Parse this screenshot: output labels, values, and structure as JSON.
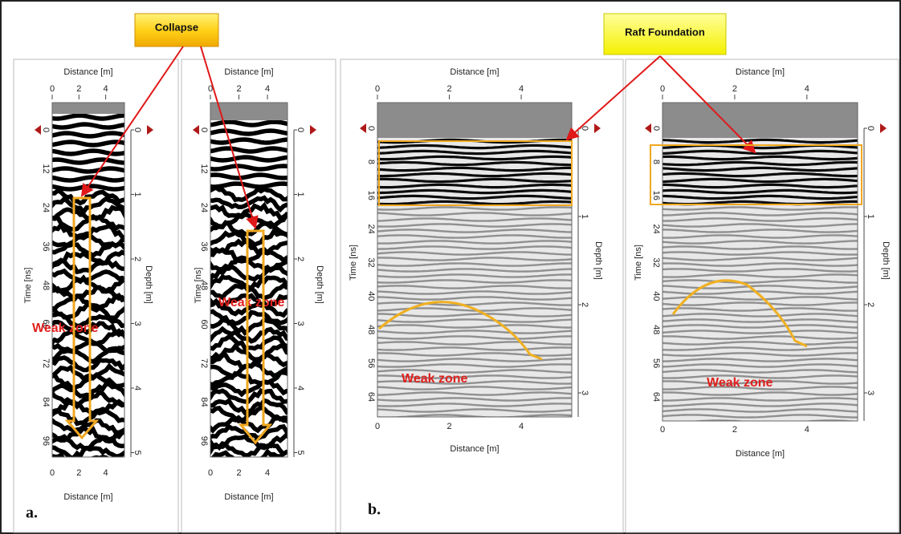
{
  "callouts": [
    {
      "label": "Collapse"
    },
    {
      "label": "Raft Foundation"
    }
  ],
  "panel_labels": [
    "a.",
    "b."
  ],
  "panels": [
    {
      "top_axis_label": "Distance [m]",
      "top_ticks": [
        "0",
        "2",
        "4"
      ],
      "bottom_axis_label": "Distance [m]",
      "bottom_ticks": [
        "0",
        "2",
        "4"
      ],
      "time_label": "Time [ns]",
      "time_ticks": [
        "0",
        "12",
        "24",
        "36",
        "48",
        "60",
        "72",
        "84",
        "96"
      ],
      "depth_label": "Depth [m]",
      "depth_ticks": [
        "0",
        "1",
        "2",
        "3",
        "4",
        "5"
      ],
      "weak_zone": "Weak zone"
    },
    {
      "top_axis_label": "Distance [m]",
      "top_ticks": [
        "0",
        "2",
        "4"
      ],
      "bottom_axis_label": "Distance [m]",
      "bottom_ticks": [
        "0",
        "2",
        "4"
      ],
      "time_label": "Time [ns]",
      "time_ticks": [
        "0",
        "12",
        "24",
        "36",
        "48",
        "60",
        "72",
        "84",
        "96"
      ],
      "depth_label": "Depth [m]",
      "depth_ticks": [
        "0",
        "1",
        "2",
        "3",
        "4",
        "5"
      ],
      "weak_zone": "Weak zone"
    },
    {
      "top_axis_label": "Distance [m]",
      "top_ticks": [
        "0",
        "2",
        "4"
      ],
      "bottom_axis_label": "Distance [m]",
      "bottom_ticks": [
        "0",
        "2",
        "4"
      ],
      "time_label": "Time [ns]",
      "time_ticks": [
        "0",
        "8",
        "16",
        "24",
        "32",
        "40",
        "48",
        "56",
        "64"
      ],
      "depth_label": "Depth [m]",
      "depth_ticks": [
        "0",
        "1",
        "2",
        "3"
      ],
      "weak_zone": "Weak zone"
    },
    {
      "top_axis_label": "Distance [m]",
      "top_ticks": [
        "0",
        "2",
        "4"
      ],
      "bottom_axis_label": "Distance [m]",
      "bottom_ticks": [
        "0",
        "2",
        "4"
      ],
      "time_label": "Time [ns]",
      "time_ticks": [
        "0",
        "8",
        "16",
        "24",
        "32",
        "40",
        "48",
        "56",
        "64"
      ],
      "depth_label": "Depth [m]",
      "depth_ticks": [
        "0",
        "1",
        "2",
        "3"
      ],
      "weak_zone": "Weak zone"
    }
  ]
}
